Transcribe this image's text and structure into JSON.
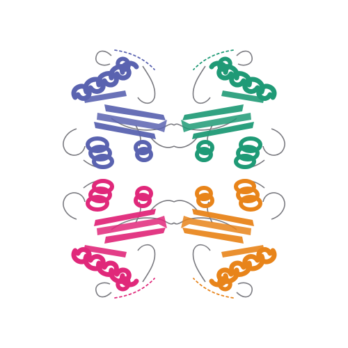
{
  "image": {
    "kind": "protein-structure-ribbon",
    "background": "#ffffff",
    "chains": [
      {
        "name": "chain-a",
        "quadrant": "top-left",
        "color": "#5a63b0"
      },
      {
        "name": "chain-b",
        "quadrant": "top-right",
        "color": "#1f9a76"
      },
      {
        "name": "chain-c",
        "quadrant": "bottom-left",
        "color": "#e0287a"
      },
      {
        "name": "chain-d",
        "quadrant": "bottom-right",
        "color": "#e8841a"
      }
    ],
    "loop_color": "#7a7a80"
  }
}
